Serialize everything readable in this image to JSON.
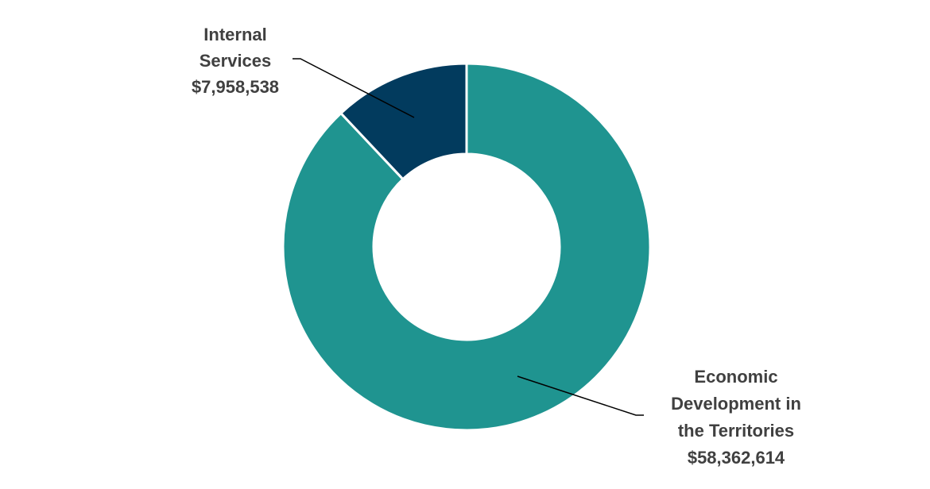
{
  "chart_data": {
    "type": "pie",
    "donut": true,
    "title": "",
    "start": "12 o'clock, clockwise",
    "slices": [
      {
        "label_lines": [
          "Economic",
          "Development in",
          "the Territories"
        ],
        "value": 58362614,
        "value_label": "$58,362,614",
        "color": "#1f9490",
        "label_position": "bottom-right"
      },
      {
        "label_lines": [
          "Internal",
          "Services"
        ],
        "value": 7958538,
        "value_label": "$7,958,538",
        "color": "#023b5e",
        "label_position": "top-left"
      }
    ],
    "legend": "none",
    "leader_lines": true
  }
}
